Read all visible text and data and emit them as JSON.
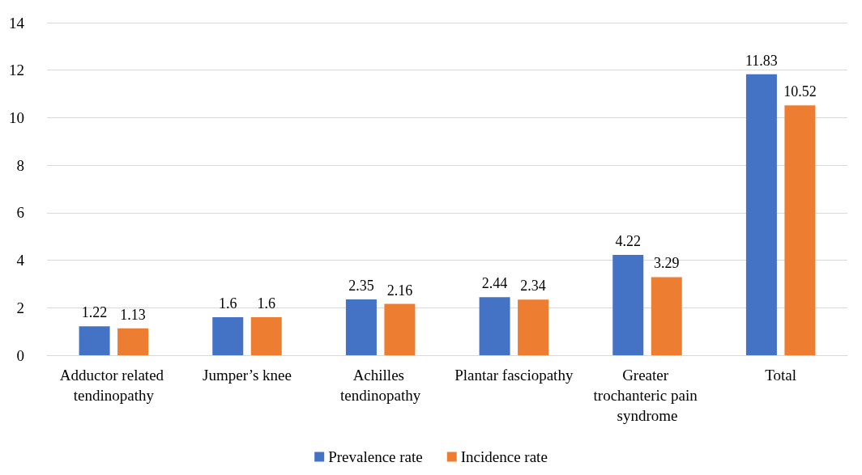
{
  "chart_data": {
    "type": "bar",
    "categories": [
      "Adductor related tendinopathy",
      "Jumper’s knee",
      "Achilles tendinopathy",
      "Plantar fasciopathy",
      "Greater trochanteric pain syndrome",
      "Total"
    ],
    "series": [
      {
        "name": "Prevalence rate",
        "color": "#4472c4",
        "values": [
          1.22,
          1.6,
          2.35,
          2.44,
          4.22,
          11.83
        ]
      },
      {
        "name": "Incidence rate",
        "color": "#ed7d31",
        "values": [
          1.13,
          1.6,
          2.16,
          2.34,
          3.29,
          10.52
        ]
      }
    ],
    "ylim": [
      0,
      14
    ],
    "yticks": [
      0,
      2,
      4,
      6,
      8,
      10,
      12,
      14
    ],
    "grid": "y",
    "legend": "bottom",
    "data_labels": true
  }
}
